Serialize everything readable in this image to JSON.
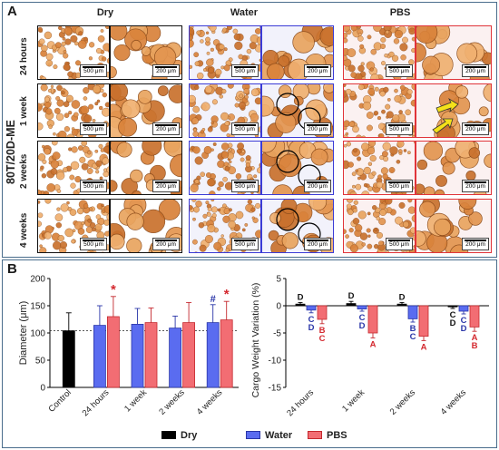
{
  "panel_a": {
    "letter": "A",
    "sample_title": "80T/20D-ME",
    "columns": [
      {
        "label": "Dry",
        "border": "#111111"
      },
      {
        "label": "Water",
        "border": "#3b3bd6"
      },
      {
        "label": "PBS",
        "border": "#e0343a"
      }
    ],
    "rows": [
      "24 hours",
      "1 week",
      "2 weeks",
      "4 weeks"
    ],
    "scale_low": "500 μm",
    "scale_high": "200 μm"
  },
  "panel_b": {
    "letter": "B",
    "legend": [
      {
        "label": "Dry",
        "color": "#000000"
      },
      {
        "label": "Water",
        "color": "#5a6cf0"
      },
      {
        "label": "PBS",
        "color": "#f26d73"
      }
    ]
  },
  "chart_data": [
    {
      "type": "bar",
      "ylabel": "Diameter (μm)",
      "ylim": [
        0,
        200
      ],
      "yticks": [
        0,
        50,
        100,
        150,
        200
      ],
      "categories": [
        "Control",
        "24 hours",
        "1 week",
        "2 weeks",
        "4 weeks"
      ],
      "reference_line": 104,
      "series": [
        {
          "name": "Dry",
          "values": [
            104,
            null,
            null,
            null,
            null
          ],
          "errors": [
            33,
            null,
            null,
            null,
            null
          ],
          "color": "#000000"
        },
        {
          "name": "Water",
          "values": [
            null,
            114,
            116,
            109,
            119
          ],
          "errors": [
            null,
            36,
            29,
            22,
            33
          ],
          "color": "#5a6cf0"
        },
        {
          "name": "PBS",
          "values": [
            null,
            130,
            119,
            119,
            124
          ],
          "errors": [
            null,
            37,
            27,
            37,
            34
          ],
          "color": "#f26d73"
        }
      ],
      "annotations": [
        {
          "category": "24 hours",
          "series": "PBS",
          "text": "*"
        },
        {
          "category": "4 weeks",
          "series": "Water",
          "text": "#"
        },
        {
          "category": "4 weeks",
          "series": "PBS",
          "text": "*"
        }
      ]
    },
    {
      "type": "bar",
      "ylabel": "Cargo Weight Variation (%)",
      "ylim": [
        -15,
        5
      ],
      "yticks": [
        5,
        0,
        -5,
        -10,
        -15
      ],
      "categories": [
        "24 hours",
        "1 week",
        "2 weeks",
        "4 weeks"
      ],
      "series": [
        {
          "name": "Dry",
          "values": [
            0.3,
            0.4,
            0.3,
            -0.2
          ],
          "errors": [
            0.3,
            0.4,
            0.3,
            0.3
          ],
          "color": "#000000",
          "letters": [
            "D",
            "D",
            "D",
            "C\nD"
          ]
        },
        {
          "name": "Water",
          "values": [
            -0.8,
            -0.6,
            -2.4,
            -1.0
          ],
          "errors": [
            0.5,
            0.4,
            0.6,
            0.5
          ],
          "color": "#5a6cf0",
          "letters": [
            "C\nD",
            "C\nD",
            "B\nC",
            "C\nD"
          ]
        },
        {
          "name": "PBS",
          "values": [
            -2.5,
            -5.0,
            -5.6,
            -3.9
          ],
          "errors": [
            0.8,
            0.9,
            0.8,
            0.8
          ],
          "color": "#f26d73",
          "letters": [
            "B\nC",
            "A",
            "A",
            "A\nB"
          ]
        }
      ]
    }
  ]
}
